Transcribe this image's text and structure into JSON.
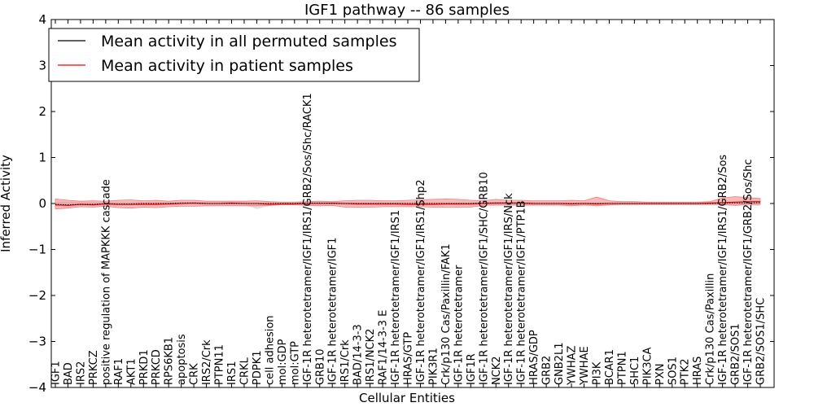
{
  "chart_data": {
    "type": "line",
    "title": "IGF1 pathway -- 86 samples",
    "xlabel": "Cellular Entities",
    "ylabel": "Inferred Activity",
    "ylim": [
      -4,
      4
    ],
    "yticks": [
      -4,
      -3,
      -2,
      -1,
      0,
      1,
      2,
      3,
      4
    ],
    "ytick_labels": [
      "−4",
      "−3",
      "−2",
      "−1",
      "0",
      "1",
      "2",
      "3",
      "4"
    ],
    "grid": false,
    "legend_position": "top-left",
    "categories": [
      "IGF1",
      "BAD",
      "IRS2",
      "PRKCZ",
      "positive regulation of MAPKKK cascade",
      "RAF1",
      "AKT1",
      "PRKD1",
      "PRKCD",
      "RPS6KB1",
      "apoptosis",
      "CRK",
      "IRS2/Crk",
      "PTPN11",
      "IRS1",
      "CRKL",
      "PDPK1",
      "cell adhesion",
      "mol:GDP",
      "mol:GTP",
      "IGF-1R heterotetramer/IGF1/IRS1/GRB2/Sos/Shc/RACK1",
      "GRB10",
      "IGF-1R heterotetramer/IGF1",
      "IRS1/Crk",
      "BAD/14-3-3",
      "IRS1/NCK2",
      "RAF1/14-3-3 E",
      "IGF-1R heterotetramer/IGF1/IRS1",
      "HRAS/GTP",
      "IGF-1R heterotetramer/IGF1/IRS1/Shp2",
      "PIK3R1",
      "Crk/p130 Cas/Paxillin/FAK1",
      "IGF-1R heterotetramer",
      "IGF1R",
      "IGF-1R heterotetramer/IGF1/SHC/GRB10",
      "NCK2",
      "IGF-1R heterotetramer/IGF1/IRS/Nck",
      "IGF-1R heterotetramer/IGF1/PTP1B",
      "HRAS/GDP",
      "GRB2",
      "GNB2L1",
      "YWHAZ",
      "YWHAE",
      "PI3K",
      "BCAR1",
      "PTPN1",
      "SHC1",
      "PIK3CA",
      "PXN",
      "SOS1",
      "PTK2",
      "HRAS",
      "Crk/p130 Cas/Paxillin",
      "IGF-1R heterotetramer/IGF1/IRS1/GRB2/Sos",
      "GRB2/SOS1",
      "IGF-1R heterotetramer/IGF1/GRB2/Sos/Shc",
      "GRB2/SOS1/SHC"
    ],
    "series": [
      {
        "name": "Mean activity in all permuted samples",
        "color": "#000000",
        "values": [
          -0.02,
          -0.03,
          -0.02,
          -0.02,
          0.0,
          -0.01,
          -0.01,
          0.0,
          0.0,
          0.0,
          0.01,
          0.01,
          0.0,
          0.0,
          0.0,
          0.0,
          0.0,
          0.0,
          0.0,
          0.0,
          0.01,
          0.01,
          0.0,
          0.0,
          0.0,
          0.0,
          0.0,
          0.0,
          0.0,
          0.0,
          0.0,
          0.0,
          0.0,
          0.0,
          0.01,
          0.01,
          0.01,
          0.01,
          0.0,
          0.0,
          0.0,
          0.0,
          0.0,
          0.0,
          0.0,
          0.0,
          0.0,
          0.0,
          0.0,
          0.0,
          0.0,
          0.0,
          0.0,
          0.01,
          0.01,
          0.01,
          0.02
        ]
      },
      {
        "name": "Mean activity in patient samples",
        "color": "#ff0000",
        "values": [
          -0.03,
          -0.04,
          -0.02,
          -0.03,
          -0.01,
          -0.02,
          -0.02,
          -0.02,
          -0.02,
          -0.01,
          0.0,
          0.01,
          0.0,
          0.0,
          0.01,
          0.0,
          0.0,
          -0.02,
          -0.01,
          -0.01,
          0.0,
          0.0,
          0.01,
          0.0,
          -0.01,
          -0.01,
          -0.01,
          -0.01,
          -0.02,
          -0.02,
          -0.02,
          -0.01,
          -0.01,
          -0.01,
          0.0,
          0.01,
          0.01,
          0.01,
          0.0,
          0.0,
          0.0,
          -0.01,
          0.0,
          -0.01,
          0.0,
          0.0,
          0.0,
          0.0,
          0.0,
          0.0,
          0.0,
          0.0,
          0.01,
          0.02,
          0.03,
          0.04,
          0.04
        ]
      }
    ],
    "patient_band": {
      "color": "#f08080",
      "lower": [
        -0.12,
        -0.1,
        -0.07,
        -0.08,
        -0.06,
        -0.09,
        -0.1,
        -0.08,
        -0.09,
        -0.07,
        -0.06,
        -0.06,
        -0.05,
        -0.05,
        -0.05,
        -0.05,
        -0.05,
        -0.04,
        -0.03,
        -0.03,
        -0.04,
        -0.05,
        -0.04,
        -0.08,
        -0.08,
        -0.08,
        -0.07,
        -0.07,
        -0.07,
        -0.07,
        -0.08,
        -0.08,
        -0.08,
        -0.08,
        -0.04,
        -0.03,
        -0.03,
        -0.03,
        -0.03,
        -0.03,
        -0.03,
        -0.05,
        -0.03,
        -0.05,
        -0.03,
        -0.02,
        -0.02,
        -0.02,
        -0.02,
        -0.02,
        -0.02,
        -0.02,
        -0.02,
        -0.02,
        -0.04,
        -0.02,
        -0.02
      ],
      "upper": [
        0.1,
        0.07,
        0.05,
        0.06,
        0.05,
        0.07,
        0.08,
        0.06,
        0.07,
        0.05,
        0.07,
        0.07,
        0.05,
        0.05,
        0.05,
        0.05,
        0.06,
        0.04,
        0.03,
        0.03,
        0.04,
        0.05,
        0.04,
        0.06,
        0.07,
        0.07,
        0.06,
        0.06,
        0.07,
        0.08,
        0.09,
        0.1,
        0.09,
        0.07,
        0.06,
        0.09,
        0.07,
        0.07,
        0.06,
        0.06,
        0.06,
        0.07,
        0.06,
        0.14,
        0.06,
        0.04,
        0.04,
        0.03,
        0.03,
        0.03,
        0.03,
        0.03,
        0.04,
        0.12,
        0.15,
        0.13,
        0.11
      ]
    },
    "permuted_band": {
      "color": "#c8c8d0",
      "lower": [
        -0.06,
        -0.06,
        -0.05,
        -0.05,
        -0.04,
        -0.05,
        -0.05,
        -0.04,
        -0.04,
        -0.04,
        -0.03,
        -0.03,
        -0.03,
        -0.03,
        -0.03,
        -0.03,
        -0.12,
        -0.05,
        -0.03,
        -0.03,
        -0.03,
        -0.04,
        -0.03,
        -0.04,
        -0.04,
        -0.04,
        -0.04,
        -0.04,
        -0.04,
        -0.04,
        -0.04,
        -0.04,
        -0.04,
        -0.04,
        -0.03,
        -0.06,
        -0.05,
        -0.06,
        -0.06,
        -0.06,
        -0.06,
        -0.06,
        -0.06,
        -0.05,
        -0.05,
        -0.04,
        -0.04,
        -0.04,
        -0.04,
        -0.04,
        -0.04,
        -0.04,
        -0.04,
        -0.05,
        -0.05,
        -0.05,
        -0.05
      ],
      "upper": [
        0.04,
        0.04,
        0.03,
        0.03,
        0.03,
        0.03,
        0.03,
        0.03,
        0.03,
        0.03,
        0.03,
        0.03,
        0.03,
        0.03,
        0.03,
        0.03,
        0.03,
        0.03,
        0.03,
        0.03,
        0.03,
        0.03,
        0.03,
        0.03,
        0.03,
        0.03,
        0.03,
        0.03,
        0.03,
        0.03,
        0.03,
        0.03,
        0.03,
        0.03,
        0.03,
        0.03,
        0.03,
        0.03,
        0.03,
        0.03,
        0.03,
        0.03,
        0.03,
        0.03,
        0.03,
        0.03,
        0.03,
        0.03,
        0.03,
        0.03,
        0.03,
        0.03,
        0.03,
        0.04,
        0.04,
        0.04,
        0.04
      ]
    }
  }
}
